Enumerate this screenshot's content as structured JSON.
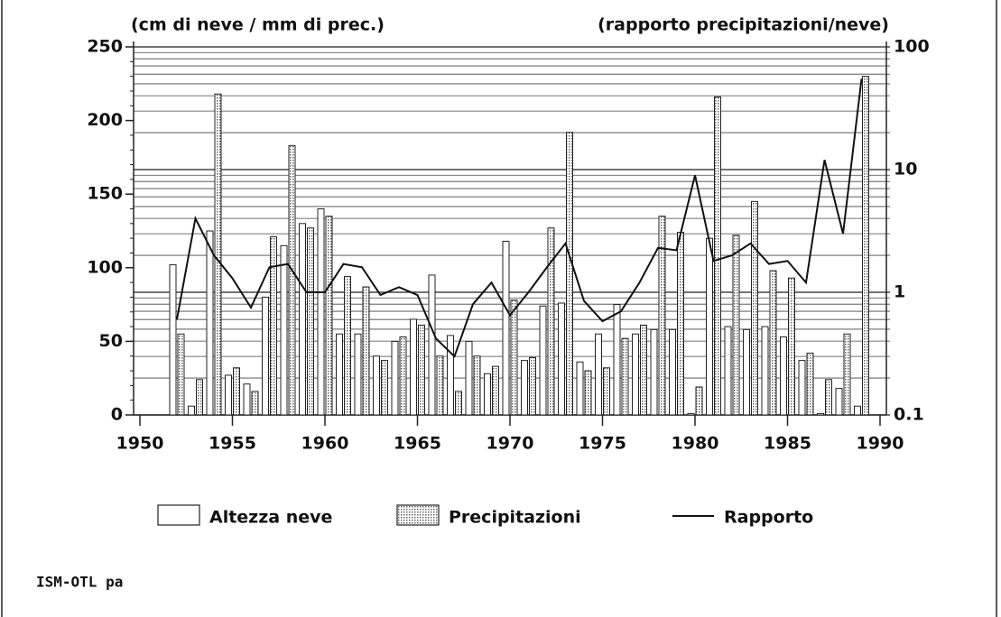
{
  "chart_data": {
    "type": "bar",
    "ylabel": "(cm di neve / mm di prec.)",
    "y2label": "(rapporto precipitazioni/neve)",
    "footer": "ISM-OTL pa",
    "x": [
      1952,
      1953,
      1954,
      1955,
      1956,
      1957,
      1958,
      1959,
      1960,
      1961,
      1962,
      1963,
      1964,
      1965,
      1966,
      1967,
      1968,
      1969,
      1970,
      1971,
      1972,
      1973,
      1974,
      1975,
      1976,
      1977,
      1978,
      1979,
      1980,
      1981,
      1982,
      1983,
      1984,
      1985,
      1986,
      1987,
      1988,
      1989
    ],
    "series": [
      {
        "name": "Altezza neve",
        "color": "#ffffff",
        "values": [
          102,
          6,
          125,
          27,
          21,
          80,
          115,
          130,
          140,
          55,
          55,
          40,
          50,
          65,
          95,
          54,
          50,
          28,
          118,
          37,
          74,
          76,
          36,
          55,
          75,
          55,
          58,
          58,
          1,
          120,
          60,
          58,
          60,
          53,
          37,
          1,
          18,
          6
        ]
      },
      {
        "name": "Precipitazioni",
        "color": "#bbbbbb",
        "values": [
          55,
          24,
          218,
          32,
          16,
          121,
          183,
          127,
          135,
          94,
          87,
          37,
          53,
          61,
          40,
          16,
          40,
          33,
          78,
          39,
          127,
          192,
          30,
          32,
          52,
          61,
          135,
          124,
          19,
          216,
          122,
          145,
          98,
          93,
          42,
          24,
          55,
          230
        ]
      },
      {
        "name": "Rapporto",
        "color": "#111111",
        "axis": "y2",
        "values": [
          0.6,
          4,
          2,
          1.3,
          0.75,
          1.6,
          1.7,
          1.0,
          1.0,
          1.7,
          1.6,
          0.95,
          1.1,
          0.95,
          0.42,
          0.3,
          0.8,
          1.2,
          0.65,
          1.0,
          1.6,
          2.5,
          0.85,
          0.58,
          0.7,
          1.2,
          2.3,
          2.2,
          9,
          1.8,
          2.0,
          2.5,
          1.7,
          1.8,
          1.2,
          12,
          3,
          55
        ]
      }
    ],
    "xlim": [
      1950,
      1990
    ],
    "xticks": [
      1950,
      1955,
      1960,
      1965,
      1970,
      1975,
      1980,
      1985,
      1990
    ],
    "ylim": [
      0,
      250
    ],
    "yticks": [
      0,
      50,
      100,
      150,
      200,
      250
    ],
    "y2lim": [
      0.1,
      100
    ],
    "y2ticks": [
      0.1,
      1,
      10,
      100
    ],
    "y2log": true,
    "grid": true
  }
}
